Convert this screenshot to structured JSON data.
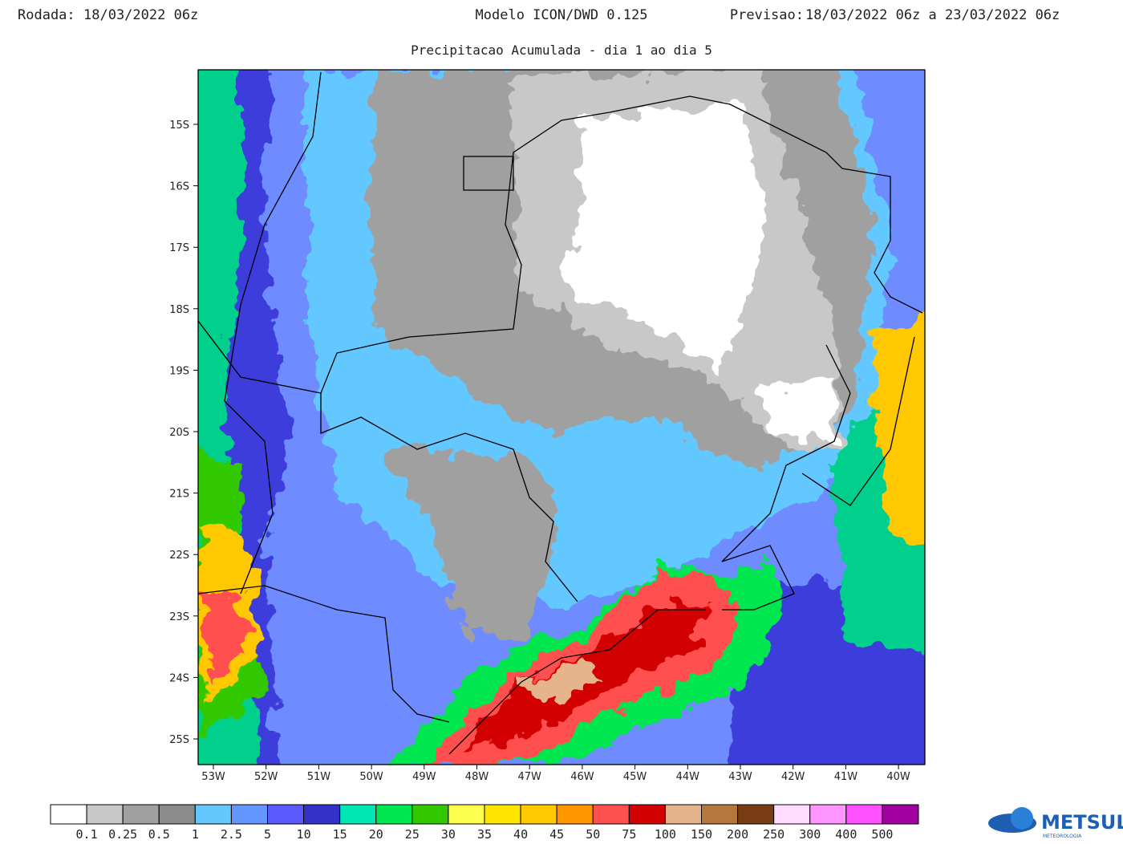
{
  "header": {
    "run_label": "Rodada:",
    "run": "18/03/2022 06z",
    "model": "Modelo ICON/DWD 0.125",
    "forecast_label": "Previsao:",
    "forecast": "18/03/2022 06z a 23/03/2022 06z",
    "subtitle": "Precipitacao Acumulada - dia 1 ao dia 5"
  },
  "map": {
    "latitudes": [
      "15S",
      "16S",
      "17S",
      "18S",
      "19S",
      "20S",
      "21S",
      "22S",
      "23S",
      "24S",
      "25S"
    ],
    "longitudes": [
      "53W",
      "52W",
      "51W",
      "50W",
      "49W",
      "48W",
      "47W",
      "46W",
      "45W",
      "44W",
      "43W",
      "42W",
      "41W",
      "40W"
    ]
  },
  "legend": {
    "colors": [
      "#ffffff",
      "#c8c8c8",
      "#a0a0a0",
      "#8c8c8c",
      "#64c8ff",
      "#6496ff",
      "#5a5aff",
      "#3232c8",
      "#00e6b4",
      "#00e650",
      "#32c800",
      "#ffff50",
      "#ffe600",
      "#ffc800",
      "#ff9600",
      "#ff5050",
      "#d20000",
      "#e6b48c",
      "#b4783c",
      "#783c14",
      "#ffdcff",
      "#ff96ff",
      "#ff50ff",
      "#a000a0"
    ],
    "labels": [
      0.1,
      0.25,
      0.5,
      1,
      2.5,
      5,
      10,
      15,
      20,
      25,
      30,
      35,
      40,
      45,
      50,
      75,
      100,
      150,
      200,
      250,
      300,
      400,
      500
    ]
  },
  "logo": {
    "name": "METSUL",
    "tagline": "METEOROLOGIA"
  }
}
